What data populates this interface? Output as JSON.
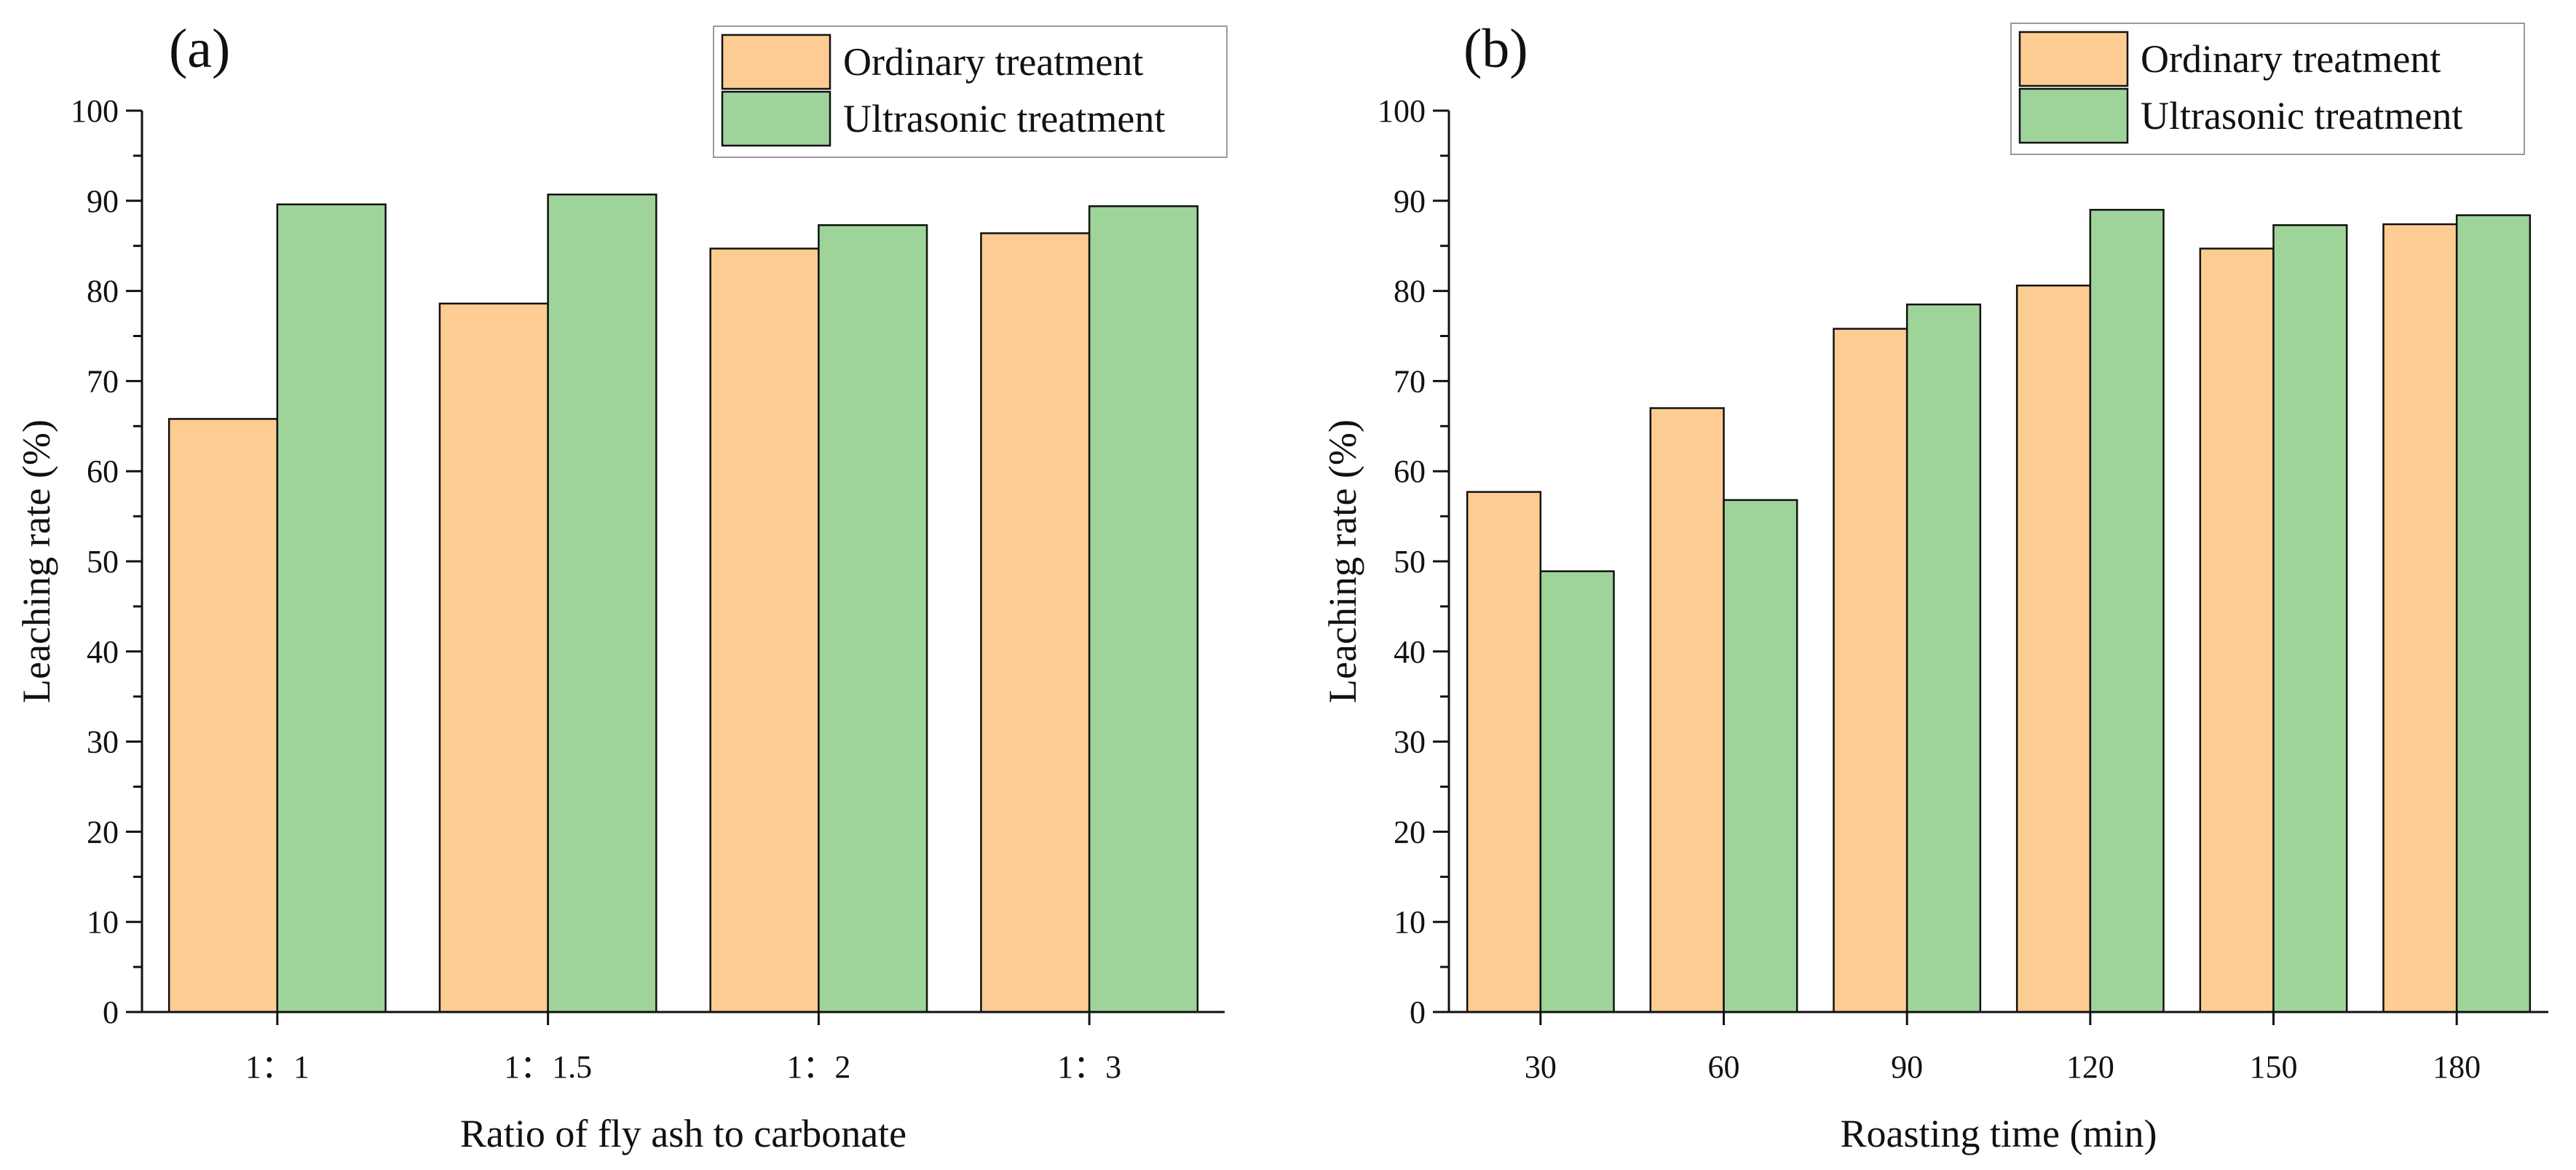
{
  "colors": {
    "ordinary": "#fdcc92",
    "ultrasonic": "#9ed49a"
  },
  "chart_data": [
    {
      "type": "bar",
      "panel_label": "(a)",
      "title": "",
      "xlabel": "Ratio of fly ash to carbonate",
      "ylabel": "Leaching rate (%)",
      "ylim": [
        0,
        100
      ],
      "yticks": [
        0,
        10,
        20,
        30,
        40,
        50,
        60,
        70,
        80,
        90,
        100
      ],
      "grid": false,
      "legend": "top-right",
      "categories": [
        "1：1",
        "1：1.5",
        "1：2",
        "1：3"
      ],
      "series": [
        {
          "name": "Ordinary treatment",
          "color_key": "ordinary",
          "values": [
            65.8,
            78.6,
            84.7,
            86.4
          ]
        },
        {
          "name": "Ultrasonic treatment",
          "color_key": "ultrasonic",
          "values": [
            89.6,
            90.7,
            87.3,
            89.4
          ]
        }
      ]
    },
    {
      "type": "bar",
      "panel_label": "(b)",
      "title": "",
      "xlabel": "Roasting time (min)",
      "ylabel": "Leaching rate (%)",
      "ylim": [
        0,
        100
      ],
      "yticks": [
        0,
        10,
        20,
        30,
        40,
        50,
        60,
        70,
        80,
        90,
        100
      ],
      "grid": false,
      "legend": "top-right",
      "categories": [
        "30",
        "60",
        "90",
        "120",
        "150",
        "180"
      ],
      "series": [
        {
          "name": "Ordinary treatment",
          "color_key": "ordinary",
          "values": [
            57.7,
            67.0,
            75.8,
            80.6,
            84.7,
            87.4
          ]
        },
        {
          "name": "Ultrasonic treatment",
          "color_key": "ultrasonic",
          "values": [
            48.9,
            56.8,
            78.5,
            89.0,
            87.3,
            88.4
          ]
        }
      ]
    }
  ]
}
